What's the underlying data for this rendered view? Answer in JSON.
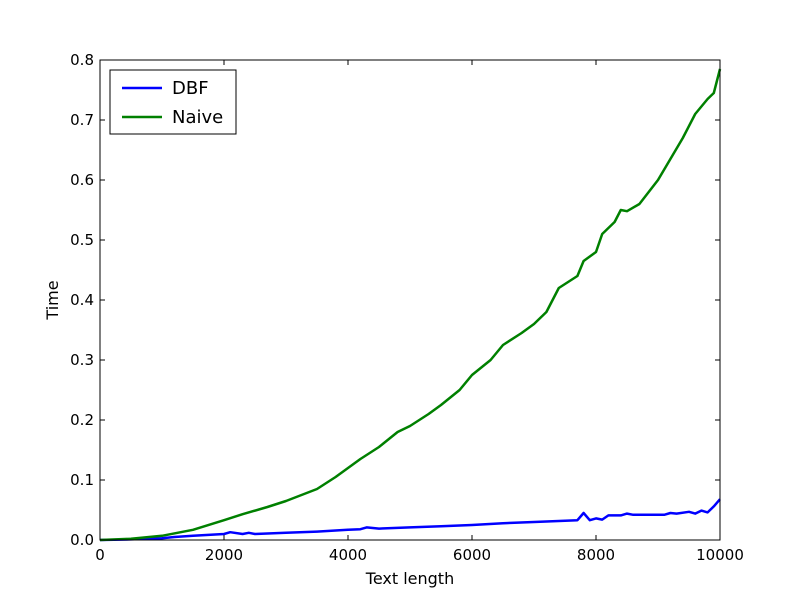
{
  "chart_data": {
    "type": "line",
    "xlabel": "Text length",
    "ylabel": "Time",
    "xlim": [
      0,
      10000
    ],
    "ylim": [
      0,
      0.8
    ],
    "x_ticks": [
      0,
      2000,
      4000,
      6000,
      8000,
      10000
    ],
    "y_ticks": [
      0.0,
      0.1,
      0.2,
      0.3,
      0.4,
      0.5,
      0.6,
      0.7,
      0.8
    ],
    "x_tick_labels": [
      "0",
      "2000",
      "4000",
      "6000",
      "8000",
      "10000"
    ],
    "y_tick_labels": [
      "0.0",
      "0.1",
      "0.2",
      "0.3",
      "0.4",
      "0.5",
      "0.6",
      "0.7",
      "0.8"
    ],
    "grid": false,
    "legend_position": "top-left",
    "series": [
      {
        "name": "DBF",
        "color": "#0000ff",
        "points": [
          [
            0,
            0.0
          ],
          [
            500,
            0.001
          ],
          [
            1000,
            0.003
          ],
          [
            1200,
            0.005
          ],
          [
            1500,
            0.007
          ],
          [
            2000,
            0.01
          ],
          [
            2100,
            0.013
          ],
          [
            2300,
            0.01
          ],
          [
            2400,
            0.012
          ],
          [
            2500,
            0.01
          ],
          [
            3000,
            0.012
          ],
          [
            3500,
            0.014
          ],
          [
            4000,
            0.017
          ],
          [
            4200,
            0.018
          ],
          [
            4300,
            0.021
          ],
          [
            4500,
            0.019
          ],
          [
            5000,
            0.021
          ],
          [
            5500,
            0.023
          ],
          [
            6000,
            0.025
          ],
          [
            6500,
            0.028
          ],
          [
            7000,
            0.03
          ],
          [
            7500,
            0.032
          ],
          [
            7700,
            0.033
          ],
          [
            7800,
            0.045
          ],
          [
            7900,
            0.033
          ],
          [
            8000,
            0.036
          ],
          [
            8100,
            0.034
          ],
          [
            8200,
            0.041
          ],
          [
            8400,
            0.041
          ],
          [
            8500,
            0.044
          ],
          [
            8600,
            0.042
          ],
          [
            9000,
            0.042
          ],
          [
            9100,
            0.042
          ],
          [
            9200,
            0.045
          ],
          [
            9300,
            0.044
          ],
          [
            9500,
            0.047
          ],
          [
            9600,
            0.044
          ],
          [
            9700,
            0.049
          ],
          [
            9800,
            0.046
          ],
          [
            9900,
            0.056
          ],
          [
            10000,
            0.068
          ]
        ]
      },
      {
        "name": "Naive",
        "color": "#008000",
        "points": [
          [
            0,
            0.0
          ],
          [
            500,
            0.002
          ],
          [
            1000,
            0.007
          ],
          [
            1500,
            0.017
          ],
          [
            2000,
            0.033
          ],
          [
            2300,
            0.043
          ],
          [
            2700,
            0.055
          ],
          [
            3000,
            0.065
          ],
          [
            3500,
            0.085
          ],
          [
            3800,
            0.105
          ],
          [
            4000,
            0.12
          ],
          [
            4200,
            0.135
          ],
          [
            4500,
            0.155
          ],
          [
            4800,
            0.18
          ],
          [
            5000,
            0.19
          ],
          [
            5300,
            0.21
          ],
          [
            5500,
            0.225
          ],
          [
            5800,
            0.25
          ],
          [
            6000,
            0.275
          ],
          [
            6300,
            0.3
          ],
          [
            6500,
            0.325
          ],
          [
            6800,
            0.345
          ],
          [
            7000,
            0.36
          ],
          [
            7200,
            0.38
          ],
          [
            7400,
            0.42
          ],
          [
            7700,
            0.44
          ],
          [
            7800,
            0.465
          ],
          [
            8000,
            0.48
          ],
          [
            8100,
            0.51
          ],
          [
            8300,
            0.53
          ],
          [
            8400,
            0.55
          ],
          [
            8500,
            0.548
          ],
          [
            8700,
            0.56
          ],
          [
            9000,
            0.6
          ],
          [
            9200,
            0.635
          ],
          [
            9400,
            0.67
          ],
          [
            9600,
            0.71
          ],
          [
            9800,
            0.735
          ],
          [
            9900,
            0.745
          ],
          [
            10000,
            0.785
          ]
        ]
      }
    ]
  }
}
